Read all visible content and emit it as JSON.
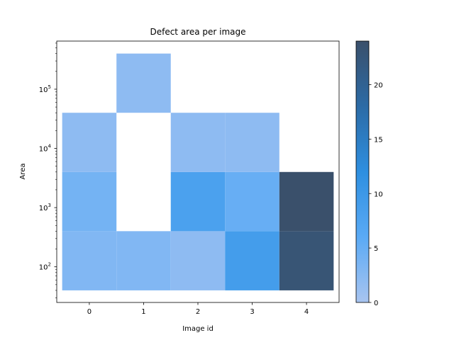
{
  "chart_data": {
    "type": "heatmap",
    "title": "Defect area per image",
    "xlabel": "Image id",
    "ylabel": "Area",
    "x_categories": [
      "0",
      "1",
      "2",
      "3",
      "4"
    ],
    "y_scale": "log",
    "y_bin_edges": [
      40,
      400,
      4000,
      40000,
      400000
    ],
    "y_ticks": [
      {
        "value": 100,
        "base": "10",
        "exp": "2"
      },
      {
        "value": 1000,
        "base": "10",
        "exp": "3"
      },
      {
        "value": 10000,
        "base": "10",
        "exp": "4"
      },
      {
        "value": 100000,
        "base": "10",
        "exp": "5"
      }
    ],
    "ylim": [
      25,
      650000
    ],
    "cells": [
      {
        "x": "0",
        "y_bin": [
          40,
          400
        ],
        "count": 3
      },
      {
        "x": "0",
        "y_bin": [
          400,
          4000
        ],
        "count": 4
      },
      {
        "x": "0",
        "y_bin": [
          4000,
          40000
        ],
        "count": 2
      },
      {
        "x": "1",
        "y_bin": [
          40,
          400
        ],
        "count": 3
      },
      {
        "x": "1",
        "y_bin": [
          40000,
          400000
        ],
        "count": 2
      },
      {
        "x": "2",
        "y_bin": [
          40,
          400
        ],
        "count": 2
      },
      {
        "x": "2",
        "y_bin": [
          400,
          4000
        ],
        "count": 8
      },
      {
        "x": "2",
        "y_bin": [
          4000,
          40000
        ],
        "count": 2
      },
      {
        "x": "3",
        "y_bin": [
          40,
          400
        ],
        "count": 9
      },
      {
        "x": "3",
        "y_bin": [
          400,
          4000
        ],
        "count": 5
      },
      {
        "x": "3",
        "y_bin": [
          4000,
          40000
        ],
        "count": 2
      },
      {
        "x": "4",
        "y_bin": [
          40,
          400
        ],
        "count": 23
      },
      {
        "x": "4",
        "y_bin": [
          400,
          4000
        ],
        "count": 24
      }
    ],
    "colorbar": {
      "min": 0,
      "max": 24,
      "ticks": [
        0,
        5,
        10,
        15,
        20
      ],
      "colors": [
        "#a8c4f0",
        "#5aaaf5",
        "#2e8fe0",
        "#2c6ba6",
        "#3a506b"
      ]
    },
    "grid": false
  }
}
